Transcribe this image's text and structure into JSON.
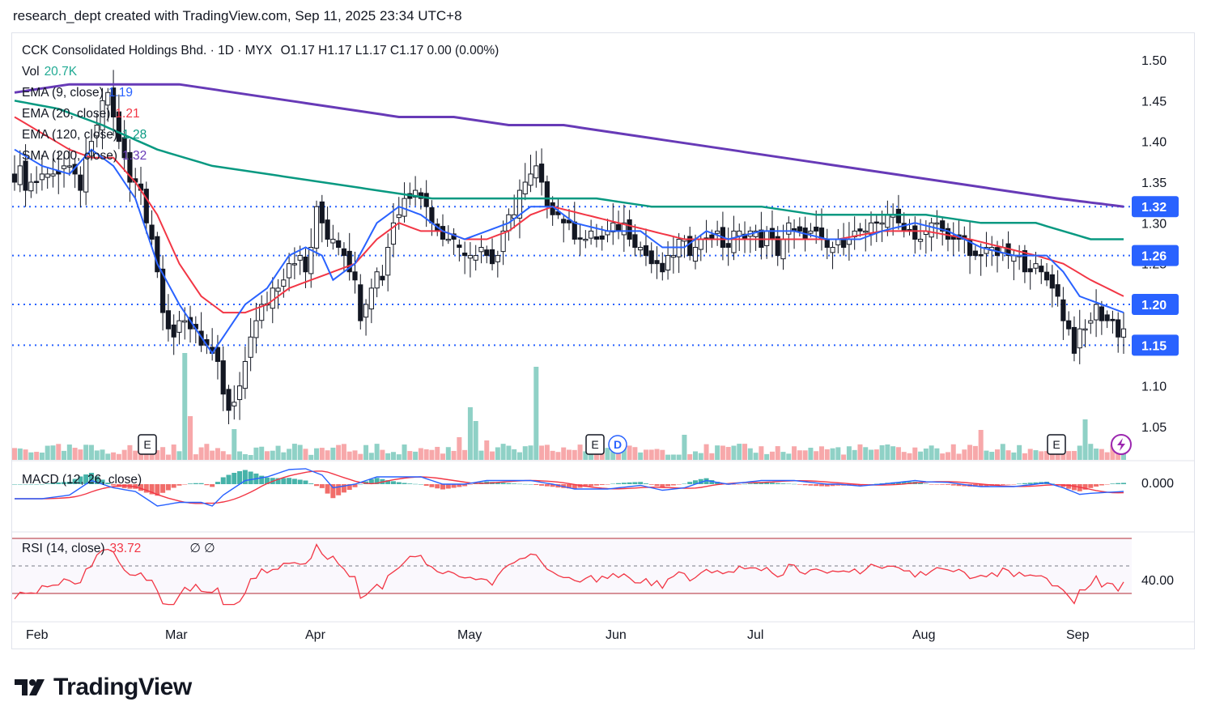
{
  "header": {
    "credit": "research_dept created with TradingView.com, Sep 11, 2025 23:34 UTC+8"
  },
  "legend": {
    "title": "CCK Consolidated Holdings Bhd. · 1D · MYX",
    "ohlc": "O1.17  H1.17  L1.17  C1.17  0.00 (0.00%)",
    "vol_label": "Vol",
    "vol_value": "20.7K",
    "ema9_label": "EMA (9, close)",
    "ema9_value": "1.19",
    "ema20_label": "EMA (20, close)",
    "ema20_value": "1.21",
    "ema120_label": "EMA (120, close)",
    "ema120_value": "1.28",
    "sma200_label": "SMA (200, close)",
    "sma200_value": "1.32",
    "macd_label": "MACD (12, 26, close)",
    "rsi_label": "RSI (14, close)",
    "rsi_value": "33.72",
    "rsi_extra": "∅  ∅"
  },
  "logo": {
    "text": "TradingView"
  },
  "colors": {
    "up": "#ffffff",
    "down": "#131722",
    "wick": "#131722",
    "ema9": "#2962ff",
    "ema20": "#f23645",
    "ema120": "#089981",
    "sma200": "#673ab7",
    "vol_up": "#8fd1c6",
    "vol_down": "#f7a8aa",
    "hline": "#2962ff",
    "rsi": "#f23645"
  },
  "chart_data": {
    "type": "candlestick",
    "x_axis_labels": [
      "Feb",
      "Mar",
      "Apr",
      "May",
      "Jun",
      "Jul",
      "Aug",
      "Sep"
    ],
    "y_axis_ticks": [
      "1.50",
      "1.45",
      "1.40",
      "1.35",
      "1.30",
      "1.25",
      "1.20",
      "1.15",
      "1.10",
      "1.05"
    ],
    "y_range": [
      1.02,
      1.51
    ],
    "horizontal_levels": [
      {
        "value": 1.32,
        "label": "1.32"
      },
      {
        "value": 1.26,
        "label": "1.26"
      },
      {
        "value": 1.2,
        "label": "1.20"
      },
      {
        "value": 1.15,
        "label": "1.15"
      }
    ],
    "event_markers": [
      {
        "label": "E",
        "date": "2025-02-26"
      },
      {
        "label": "E",
        "date": "2025-05-28"
      },
      {
        "label": "D",
        "date": "2025-05-29"
      },
      {
        "label": "E",
        "date": "2025-08-27"
      }
    ],
    "macd": {
      "tick": "0.000"
    },
    "rsi": {
      "tick": "40.00",
      "upper": 70,
      "middle": 50,
      "lower": 30,
      "last": 33.72
    },
    "ema_anchors": {
      "ema9": [
        [
          0,
          1.39
        ],
        [
          5,
          1.37
        ],
        [
          10,
          1.36
        ],
        [
          14,
          1.39
        ],
        [
          18,
          1.37
        ],
        [
          22,
          1.33
        ],
        [
          26,
          1.25
        ],
        [
          30,
          1.2
        ],
        [
          34,
          1.16
        ],
        [
          36,
          1.14
        ],
        [
          39,
          1.17
        ],
        [
          42,
          1.2
        ],
        [
          46,
          1.22
        ],
        [
          50,
          1.26
        ],
        [
          53,
          1.27
        ],
        [
          56,
          1.26
        ],
        [
          58,
          1.23
        ],
        [
          62,
          1.25
        ],
        [
          66,
          1.3
        ],
        [
          70,
          1.32
        ],
        [
          74,
          1.31
        ],
        [
          78,
          1.29
        ],
        [
          82,
          1.28
        ],
        [
          86,
          1.29
        ],
        [
          90,
          1.3
        ],
        [
          94,
          1.32
        ],
        [
          98,
          1.32
        ],
        [
          102,
          1.3
        ],
        [
          108,
          1.29
        ],
        [
          114,
          1.29
        ],
        [
          118,
          1.27
        ],
        [
          122,
          1.27
        ],
        [
          126,
          1.29
        ],
        [
          130,
          1.28
        ],
        [
          136,
          1.29
        ],
        [
          142,
          1.29
        ],
        [
          148,
          1.28
        ],
        [
          154,
          1.28
        ],
        [
          158,
          1.29
        ],
        [
          164,
          1.3
        ],
        [
          170,
          1.29
        ],
        [
          176,
          1.27
        ],
        [
          182,
          1.26
        ],
        [
          188,
          1.26
        ],
        [
          191,
          1.24
        ],
        [
          194,
          1.21
        ],
        [
          198,
          1.2
        ],
        [
          202,
          1.19
        ]
      ],
      "ema20": [
        [
          0,
          1.43
        ],
        [
          5,
          1.41
        ],
        [
          10,
          1.39
        ],
        [
          14,
          1.38
        ],
        [
          18,
          1.38
        ],
        [
          22,
          1.35
        ],
        [
          26,
          1.31
        ],
        [
          30,
          1.25
        ],
        [
          34,
          1.21
        ],
        [
          38,
          1.19
        ],
        [
          42,
          1.19
        ],
        [
          46,
          1.2
        ],
        [
          50,
          1.22
        ],
        [
          54,
          1.23
        ],
        [
          58,
          1.24
        ],
        [
          62,
          1.25
        ],
        [
          66,
          1.28
        ],
        [
          70,
          1.3
        ],
        [
          74,
          1.29
        ],
        [
          78,
          1.29
        ],
        [
          82,
          1.28
        ],
        [
          86,
          1.28
        ],
        [
          90,
          1.29
        ],
        [
          94,
          1.31
        ],
        [
          98,
          1.32
        ],
        [
          104,
          1.31
        ],
        [
          110,
          1.3
        ],
        [
          116,
          1.29
        ],
        [
          122,
          1.28
        ],
        [
          130,
          1.28
        ],
        [
          140,
          1.28
        ],
        [
          150,
          1.28
        ],
        [
          158,
          1.29
        ],
        [
          166,
          1.29
        ],
        [
          174,
          1.28
        ],
        [
          180,
          1.27
        ],
        [
          186,
          1.26
        ],
        [
          191,
          1.25
        ],
        [
          196,
          1.23
        ],
        [
          202,
          1.21
        ]
      ],
      "ema120": [
        [
          0,
          1.45
        ],
        [
          8,
          1.44
        ],
        [
          16,
          1.42
        ],
        [
          26,
          1.39
        ],
        [
          36,
          1.37
        ],
        [
          46,
          1.36
        ],
        [
          56,
          1.35
        ],
        [
          66,
          1.34
        ],
        [
          76,
          1.33
        ],
        [
          86,
          1.33
        ],
        [
          96,
          1.33
        ],
        [
          106,
          1.33
        ],
        [
          116,
          1.32
        ],
        [
          126,
          1.32
        ],
        [
          136,
          1.32
        ],
        [
          146,
          1.31
        ],
        [
          156,
          1.31
        ],
        [
          166,
          1.31
        ],
        [
          176,
          1.3
        ],
        [
          186,
          1.3
        ],
        [
          196,
          1.28
        ],
        [
          202,
          1.28
        ]
      ],
      "sma200": [
        [
          0,
          1.46
        ],
        [
          10,
          1.47
        ],
        [
          20,
          1.47
        ],
        [
          30,
          1.47
        ],
        [
          40,
          1.46
        ],
        [
          50,
          1.45
        ],
        [
          60,
          1.44
        ],
        [
          70,
          1.43
        ],
        [
          80,
          1.43
        ],
        [
          90,
          1.42
        ],
        [
          100,
          1.42
        ],
        [
          110,
          1.41
        ],
        [
          120,
          1.4
        ],
        [
          130,
          1.39
        ],
        [
          140,
          1.38
        ],
        [
          150,
          1.37
        ],
        [
          160,
          1.36
        ],
        [
          170,
          1.35
        ],
        [
          180,
          1.34
        ],
        [
          190,
          1.33
        ],
        [
          202,
          1.32
        ]
      ]
    },
    "close_anchors": [
      [
        0,
        1.36
      ],
      [
        3,
        1.35
      ],
      [
        6,
        1.36
      ],
      [
        9,
        1.37
      ],
      [
        12,
        1.35
      ],
      [
        15,
        1.42
      ],
      [
        17,
        1.46
      ],
      [
        19,
        1.4
      ],
      [
        21,
        1.35
      ],
      [
        23,
        1.34
      ],
      [
        25,
        1.28
      ],
      [
        27,
        1.2
      ],
      [
        29,
        1.16
      ],
      [
        31,
        1.18
      ],
      [
        33,
        1.17
      ],
      [
        35,
        1.15
      ],
      [
        37,
        1.12
      ],
      [
        39,
        1.06
      ],
      [
        41,
        1.09
      ],
      [
        43,
        1.17
      ],
      [
        45,
        1.19
      ],
      [
        47,
        1.22
      ],
      [
        49,
        1.24
      ],
      [
        51,
        1.26
      ],
      [
        53,
        1.24
      ],
      [
        55,
        1.31
      ],
      [
        57,
        1.29
      ],
      [
        59,
        1.28
      ],
      [
        61,
        1.25
      ],
      [
        63,
        1.19
      ],
      [
        65,
        1.23
      ],
      [
        67,
        1.24
      ],
      [
        69,
        1.3
      ],
      [
        71,
        1.33
      ],
      [
        73,
        1.35
      ],
      [
        75,
        1.32
      ],
      [
        77,
        1.29
      ],
      [
        79,
        1.29
      ],
      [
        81,
        1.27
      ],
      [
        83,
        1.26
      ],
      [
        85,
        1.27
      ],
      [
        87,
        1.25
      ],
      [
        89,
        1.28
      ],
      [
        91,
        1.32
      ],
      [
        93,
        1.35
      ],
      [
        95,
        1.36
      ],
      [
        97,
        1.33
      ],
      [
        99,
        1.31
      ],
      [
        101,
        1.29
      ],
      [
        103,
        1.29
      ],
      [
        105,
        1.28
      ],
      [
        107,
        1.28
      ],
      [
        109,
        1.29
      ],
      [
        111,
        1.3
      ],
      [
        113,
        1.28
      ],
      [
        115,
        1.26
      ],
      [
        117,
        1.24
      ],
      [
        119,
        1.25
      ],
      [
        121,
        1.27
      ],
      [
        123,
        1.27
      ],
      [
        125,
        1.28
      ],
      [
        127,
        1.29
      ],
      [
        129,
        1.27
      ],
      [
        131,
        1.28
      ],
      [
        133,
        1.29
      ],
      [
        135,
        1.28
      ],
      [
        137,
        1.28
      ],
      [
        139,
        1.27
      ],
      [
        141,
        1.29
      ],
      [
        143,
        1.28
      ],
      [
        145,
        1.29
      ],
      [
        147,
        1.27
      ],
      [
        149,
        1.27
      ],
      [
        151,
        1.28
      ],
      [
        153,
        1.29
      ],
      [
        155,
        1.28
      ],
      [
        157,
        1.3
      ],
      [
        159,
        1.31
      ],
      [
        161,
        1.3
      ],
      [
        163,
        1.29
      ],
      [
        165,
        1.28
      ],
      [
        167,
        1.3
      ],
      [
        169,
        1.29
      ],
      [
        171,
        1.28
      ],
      [
        173,
        1.27
      ],
      [
        175,
        1.26
      ],
      [
        177,
        1.27
      ],
      [
        179,
        1.26
      ],
      [
        181,
        1.26
      ],
      [
        183,
        1.25
      ],
      [
        185,
        1.25
      ],
      [
        187,
        1.24
      ],
      [
        189,
        1.23
      ],
      [
        191,
        1.19
      ],
      [
        193,
        1.15
      ],
      [
        195,
        1.17
      ],
      [
        197,
        1.19
      ],
      [
        199,
        1.18
      ],
      [
        201,
        1.17
      ],
      [
        202,
        1.17
      ]
    ]
  }
}
